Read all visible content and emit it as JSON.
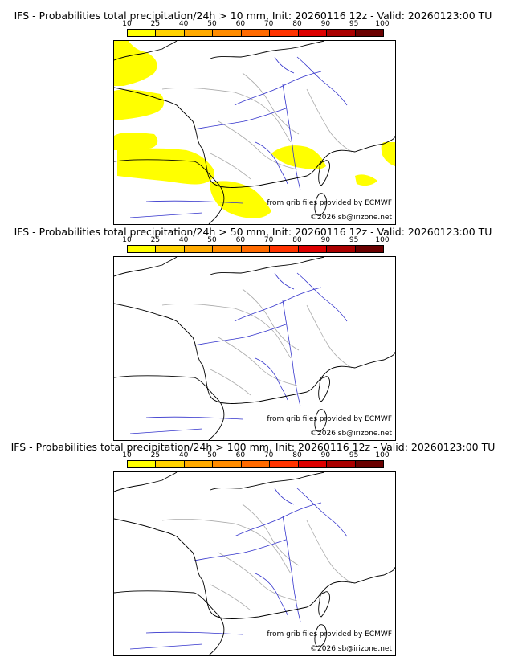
{
  "panels": [
    {
      "title": "IFS - Probabilities total precipitation/24h > 10 mm, Init: 20260116 12z - Valid: 20260123:00 TU",
      "has_yellow": true
    },
    {
      "title": "IFS - Probabilities total precipitation/24h > 50 mm, Init: 20260116 12z - Valid: 20260123:00 TU",
      "has_yellow": false
    },
    {
      "title": "IFS - Probabilities total precipitation/24h > 100 mm, Init: 20260116 12z - Valid: 20260123:00 TU",
      "has_yellow": false
    }
  ],
  "scale": {
    "ticks": [
      "10",
      "25",
      "40",
      "50",
      "60",
      "70",
      "80",
      "90",
      "95",
      "100"
    ],
    "colors": [
      "#ffff00",
      "#ffd200",
      "#ffaa00",
      "#ff8c00",
      "#ff6a00",
      "#ff3300",
      "#dd0000",
      "#aa0000",
      "#6a0000"
    ]
  },
  "credits": {
    "line1": "from grib files provided by ECMWF",
    "line2": "©2026 sb@irizone.net"
  },
  "colors": {
    "coast": "#000000",
    "rivers": "#3333cc",
    "borders": "#aaaaaa",
    "precip": "#ffff00"
  }
}
